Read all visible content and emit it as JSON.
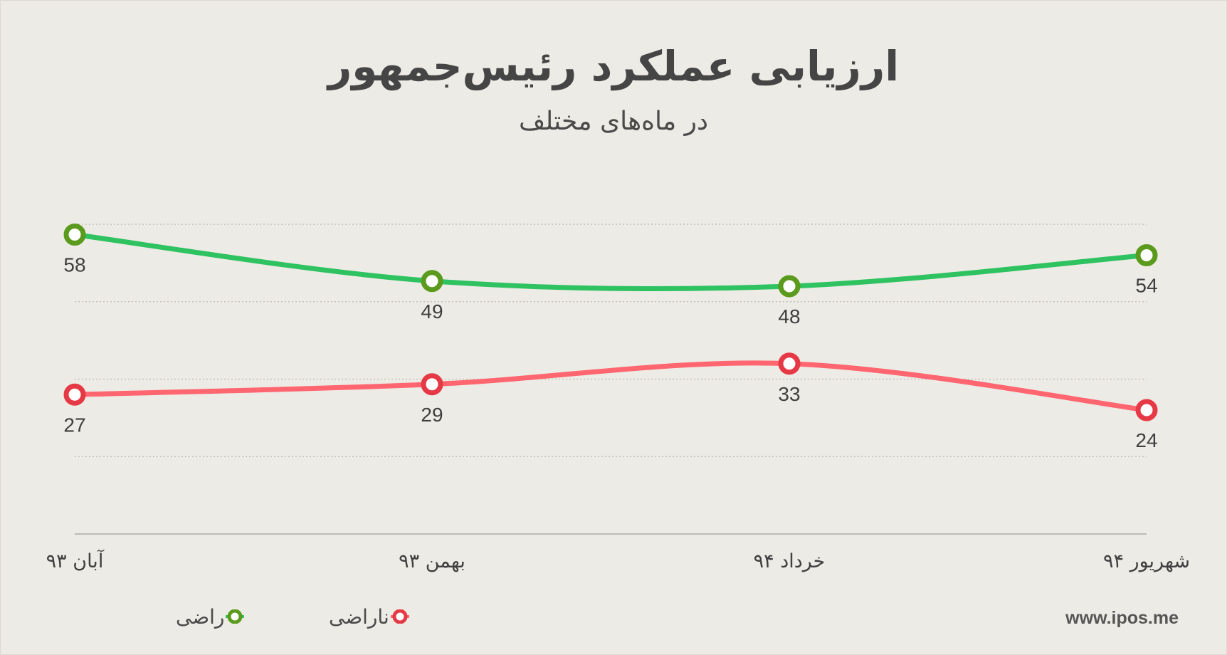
{
  "header": {
    "title": "ارزیابی عملکرد رئیس‌جمهور",
    "subtitle": "در ماه‌های مختلف"
  },
  "source": "www.ipos.me",
  "legend": {
    "items": [
      {
        "label": "راضی",
        "color": "#5a9a1c"
      },
      {
        "label": "ناراضی",
        "color": "#e63946"
      }
    ]
  },
  "chart_data": {
    "type": "line",
    "categories": [
      "آبان ۹۳",
      "بهمن ۹۳",
      "خرداد ۹۴",
      "شهریور ۹۴"
    ],
    "series": [
      {
        "name": "راضی",
        "values": [
          58,
          49,
          48,
          54
        ],
        "line_color": "#2ec261",
        "marker_color": "#5a9a1c"
      },
      {
        "name": "ناراضی",
        "values": [
          27,
          29,
          33,
          24
        ],
        "line_color": "#ff6670",
        "marker_color": "#e63946"
      }
    ],
    "ylim": [
      0,
      60
    ],
    "grid": true,
    "legend_position": "bottom-left",
    "data_labels": true
  }
}
